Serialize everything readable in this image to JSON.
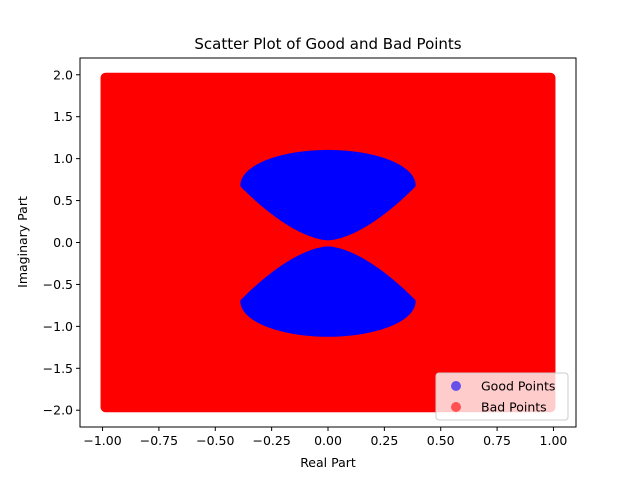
{
  "chart_data": {
    "type": "scatter",
    "title": "Scatter Plot of Good and Bad Points",
    "xlabel": "Real Part",
    "ylabel": "Imaginary Part",
    "xlim": [
      -1.1,
      1.1
    ],
    "ylim": [
      -2.2,
      2.2
    ],
    "x_ticks": [
      -1.0,
      -0.75,
      -0.5,
      -0.25,
      0.0,
      0.25,
      0.5,
      0.75,
      1.0
    ],
    "x_tick_labels": [
      "−1.00",
      "−0.75",
      "−0.50",
      "−0.25",
      "0.00",
      "0.25",
      "0.50",
      "0.75",
      "1.00"
    ],
    "y_ticks": [
      -2.0,
      -1.5,
      -1.0,
      -0.5,
      0.0,
      0.5,
      1.0,
      1.5,
      2.0
    ],
    "y_tick_labels": [
      "−2.0",
      "−1.5",
      "−1.0",
      "−0.5",
      "0.0",
      "0.5",
      "1.0",
      "1.5",
      "2.0"
    ],
    "grid": false,
    "legend_position": "lower right",
    "series": [
      {
        "name": "Good Points",
        "color": "#0000ff",
        "alpha": 0.6,
        "region": {
          "description_shape": "two lobes symmetric about Im=0, tips near origin",
          "upper_lobe": {
            "x_range": [
              -0.38,
              0.38
            ],
            "y_range": [
              0.05,
              1.08
            ],
            "widest_at_y": 0.68
          },
          "lower_lobe": {
            "x_range": [
              -0.38,
              0.38
            ],
            "y_range": [
              -1.1,
              -0.07
            ],
            "widest_at_y": -0.7
          }
        }
      },
      {
        "name": "Bad Points",
        "color": "#ff0000",
        "alpha": 0.6,
        "region": {
          "x_range": [
            -1.0,
            1.0
          ],
          "y_range": [
            -2.0,
            2.0
          ]
        }
      }
    ]
  }
}
